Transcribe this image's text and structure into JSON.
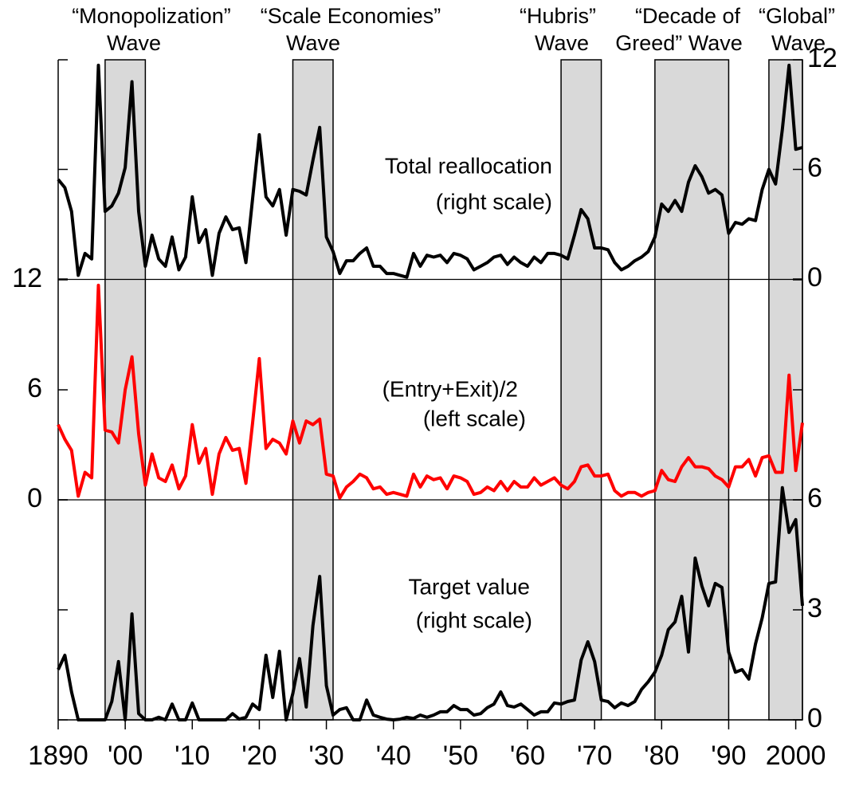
{
  "chart_data": {
    "type": "line",
    "x": [
      1890,
      1891,
      1892,
      1893,
      1894,
      1895,
      1896,
      1897,
      1898,
      1899,
      1900,
      1901,
      1902,
      1903,
      1904,
      1905,
      1906,
      1907,
      1908,
      1909,
      1910,
      1911,
      1912,
      1913,
      1914,
      1915,
      1916,
      1917,
      1918,
      1919,
      1920,
      1921,
      1922,
      1923,
      1924,
      1925,
      1926,
      1927,
      1928,
      1929,
      1930,
      1931,
      1932,
      1933,
      1934,
      1935,
      1936,
      1937,
      1938,
      1939,
      1940,
      1941,
      1942,
      1943,
      1944,
      1945,
      1946,
      1947,
      1948,
      1949,
      1950,
      1951,
      1952,
      1953,
      1954,
      1955,
      1956,
      1957,
      1958,
      1959,
      1960,
      1961,
      1962,
      1963,
      1964,
      1965,
      1966,
      1967,
      1968,
      1969,
      1970,
      1971,
      1972,
      1973,
      1974,
      1975,
      1976,
      1977,
      1978,
      1979,
      1980,
      1981,
      1982,
      1983,
      1984,
      1985,
      1986,
      1987,
      1988,
      1989,
      1990,
      1991,
      1992,
      1993,
      1994,
      1995,
      1996,
      1997,
      1998,
      1999,
      2000,
      2001
    ],
    "xlim": [
      1890,
      2001
    ],
    "xticks": [
      1890,
      {
        "value": 1900,
        "label": "'00"
      },
      {
        "value": 1910,
        "label": "'10"
      },
      {
        "value": 1920,
        "label": "'20"
      },
      {
        "value": 1930,
        "label": "'30"
      },
      {
        "value": 1940,
        "label": "'40"
      },
      {
        "value": 1950,
        "label": "'50"
      },
      {
        "value": 1960,
        "label": "'60"
      },
      {
        "value": 1970,
        "label": "'70"
      },
      {
        "value": 1980,
        "label": "'80"
      },
      {
        "value": 1990,
        "label": "'90"
      },
      2000
    ],
    "waves": [
      {
        "label": [
          "“Monopolization”",
          "Wave"
        ],
        "start": 1897,
        "end": 1903
      },
      {
        "label": [
          "“Scale Economies”",
          "Wave"
        ],
        "start": 1925,
        "end": 1931
      },
      {
        "label": [
          "“Hubris”",
          "Wave"
        ],
        "start": 1965,
        "end": 1971
      },
      {
        "label": [
          "“Decade of",
          "Greed” Wave"
        ],
        "start": 1979,
        "end": 1990
      },
      {
        "label": [
          "“Global”",
          "Wave"
        ],
        "start": 1996,
        "end": 2001
      }
    ],
    "panels": [
      {
        "label": [
          "Total reallocation",
          "(right scale)"
        ],
        "color": "#000000",
        "axis": "y2",
        "ylim": [
          0,
          12
        ],
        "yticks": [
          0,
          6,
          12
        ],
        "values": [
          5.45,
          5.0,
          3.7,
          0.2,
          1.4,
          1.1,
          11.7,
          3.7,
          4.0,
          4.7,
          6.1,
          10.8,
          3.7,
          0.7,
          2.4,
          1.1,
          0.7,
          2.3,
          0.5,
          1.2,
          4.5,
          2.0,
          2.7,
          0.2,
          2.5,
          3.4,
          2.7,
          2.8,
          0.9,
          4.4,
          7.9,
          4.5,
          4.0,
          4.9,
          2.4,
          4.9,
          4.8,
          4.6,
          6.5,
          8.3,
          2.3,
          1.5,
          0.3,
          1.0,
          1.0,
          1.4,
          1.7,
          0.7,
          0.7,
          0.3,
          0.3,
          0.2,
          0.1,
          1.4,
          0.7,
          1.3,
          1.2,
          1.3,
          0.9,
          1.4,
          1.3,
          1.1,
          0.5,
          0.7,
          0.9,
          1.2,
          1.3,
          0.8,
          1.2,
          0.9,
          0.7,
          1.2,
          0.9,
          1.4,
          1.4,
          1.3,
          1.1,
          2.4,
          3.8,
          3.3,
          1.7,
          1.7,
          1.6,
          0.9,
          0.5,
          0.7,
          1.0,
          1.2,
          1.5,
          2.3,
          4.1,
          3.7,
          4.3,
          3.7,
          5.3,
          6.2,
          5.6,
          4.7,
          4.9,
          4.6,
          2.5,
          3.1,
          3.0,
          3.3,
          3.2,
          4.9,
          6.0,
          5.2,
          8.2,
          11.7,
          7.1,
          7.2
        ]
      },
      {
        "label": [
          "(Entry+Exit)/2",
          "(left scale)"
        ],
        "color": "#ff0000",
        "axis": "y",
        "ylim": [
          0,
          12
        ],
        "yticks": [
          0,
          6,
          12
        ],
        "values": [
          4.1,
          3.3,
          2.7,
          0.2,
          1.5,
          1.2,
          11.7,
          3.8,
          3.7,
          3.1,
          6.0,
          7.8,
          3.6,
          0.8,
          2.5,
          1.2,
          1.0,
          1.9,
          0.6,
          1.3,
          4.1,
          2.0,
          2.8,
          0.3,
          2.5,
          3.4,
          2.7,
          2.8,
          0.9,
          4.2,
          7.7,
          2.8,
          3.3,
          3.1,
          2.5,
          4.3,
          3.1,
          4.3,
          4.1,
          4.4,
          1.4,
          1.3,
          0.1,
          0.7,
          1.0,
          1.4,
          1.2,
          0.6,
          0.7,
          0.3,
          0.4,
          0.3,
          0.2,
          1.4,
          0.7,
          1.3,
          1.1,
          1.2,
          0.6,
          1.3,
          1.2,
          1.0,
          0.3,
          0.4,
          0.7,
          0.5,
          1.0,
          0.5,
          1.0,
          0.7,
          0.7,
          1.2,
          0.8,
          1.0,
          1.2,
          0.8,
          0.6,
          1.0,
          1.8,
          1.9,
          1.3,
          1.3,
          1.4,
          0.5,
          0.2,
          0.4,
          0.4,
          0.2,
          0.4,
          0.5,
          1.6,
          1.1,
          1.0,
          1.8,
          2.3,
          1.8,
          1.8,
          1.7,
          1.3,
          1.1,
          0.7,
          1.8,
          1.8,
          2.2,
          1.3,
          2.3,
          2.4,
          1.5,
          1.5,
          6.8,
          1.6,
          4.2
        ]
      },
      {
        "label": [
          "Target value",
          "(right scale)"
        ],
        "color": "#000000",
        "axis": "y2",
        "ylim": [
          0,
          6
        ],
        "yticks": [
          0,
          3,
          6
        ],
        "values": [
          1.37,
          1.76,
          0.76,
          0,
          0,
          0,
          0,
          0,
          0.5,
          1.59,
          0,
          2.89,
          0.17,
          0,
          0,
          0.07,
          0,
          0.43,
          0,
          0,
          0.46,
          0,
          0,
          0,
          0,
          0,
          0.17,
          0.02,
          0.07,
          0.43,
          0.28,
          1.76,
          0.61,
          1.87,
          0,
          0.72,
          1.67,
          0.35,
          2.57,
          3.91,
          0.93,
          0.13,
          0.28,
          0.33,
          0,
          0,
          0.54,
          0.13,
          0.07,
          0.02,
          0,
          0.02,
          0.07,
          0.04,
          0.13,
          0.07,
          0.13,
          0.22,
          0.22,
          0.39,
          0.28,
          0.28,
          0.13,
          0.17,
          0.33,
          0.43,
          0.76,
          0.39,
          0.35,
          0.43,
          0.28,
          0.13,
          0.22,
          0.22,
          0.46,
          0.43,
          0.5,
          0.54,
          1.63,
          2.13,
          1.59,
          0.54,
          0.5,
          0.33,
          0.46,
          0.39,
          0.5,
          0.83,
          1.04,
          1.3,
          1.76,
          2.46,
          2.67,
          3.37,
          1.85,
          4.41,
          3.65,
          3.11,
          3.72,
          3.61,
          1.85,
          1.3,
          1.37,
          1.11,
          2.07,
          2.78,
          3.72,
          3.76,
          6.33,
          5.11,
          5.46,
          3.11
        ]
      }
    ]
  }
}
